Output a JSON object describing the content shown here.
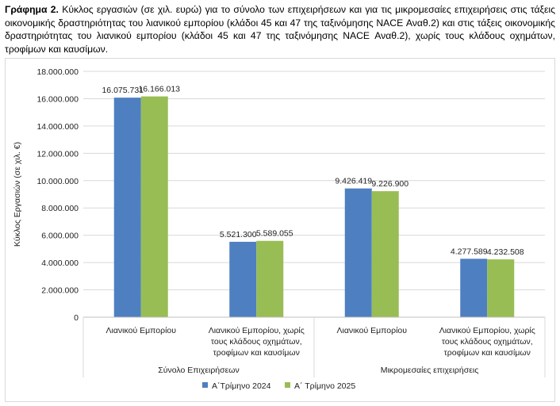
{
  "caption": {
    "prefix": "Γράφημα 2.",
    "text": "Κύκλος εργασιών (σε χιλ. ευρώ) για το σύνολο των επιχειρήσεων και για τις μικρομεσαίες επιχειρήσεις στις τάξεις οικονομικής δραστηριότητας του λιανικού εμπορίου (κλάδοι 45 και 47 της ταξινόμησης NACE Αναθ.2) και στις τάξεις οικονομικής δραστηριότητας του λιανικού εμπορίου (κλάδοι 45 και 47 της ταξινόμησης NACE Αναθ.2), χωρίς τους κλάδους οχημάτων, τροφίμων και καυσίμων."
  },
  "chart_data": {
    "type": "bar",
    "title": "",
    "ylabel": "Κύκλος Εργασιών (σε χιλ. €)",
    "ylim": [
      0,
      18000000
    ],
    "yticks": [
      "0",
      "2.000.000",
      "4.000.000",
      "6.000.000",
      "8.000.000",
      "10.000.000",
      "12.000.000",
      "14.000.000",
      "16.000.000",
      "18.000.000"
    ],
    "ytick_values": [
      0,
      2000000,
      4000000,
      6000000,
      8000000,
      10000000,
      12000000,
      14000000,
      16000000,
      18000000
    ],
    "grid": true,
    "legend_position": "bottom",
    "categories": [
      [
        "Λιανικού Εμπορίου"
      ],
      [
        "Λιανικού Εμπορίου, χωρίς",
        "τους κλάδους οχημάτων,",
        "τροφίμων και καυσίμων"
      ],
      [
        "Λιανικού Εμπορίου"
      ],
      [
        "Λιανικού Εμπορίου, χωρίς",
        "τους κλάδους οχημάτων,",
        "τροφίμων και καυσίμων"
      ]
    ],
    "groups": [
      "Σύνολο Επιχειρήσεων",
      "Μικρομεσαίες επιχειρήσεις"
    ],
    "series": [
      {
        "name": "Α΄Τρίμηνο 2024",
        "color": "#4e7fc1",
        "values": [
          16075731,
          5521300,
          9426419,
          4277589
        ],
        "labels": [
          "16.075.731",
          "5.521.300",
          "9.426.419",
          "4.277.589"
        ]
      },
      {
        "name": "Α΄ Τρίμηνο 2025",
        "color": "#98bd55",
        "values": [
          16166013,
          5589055,
          9226900,
          4232508
        ],
        "labels": [
          "16.166.013",
          "5.589.055",
          "9.226.900",
          "4.232.508"
        ]
      }
    ]
  }
}
